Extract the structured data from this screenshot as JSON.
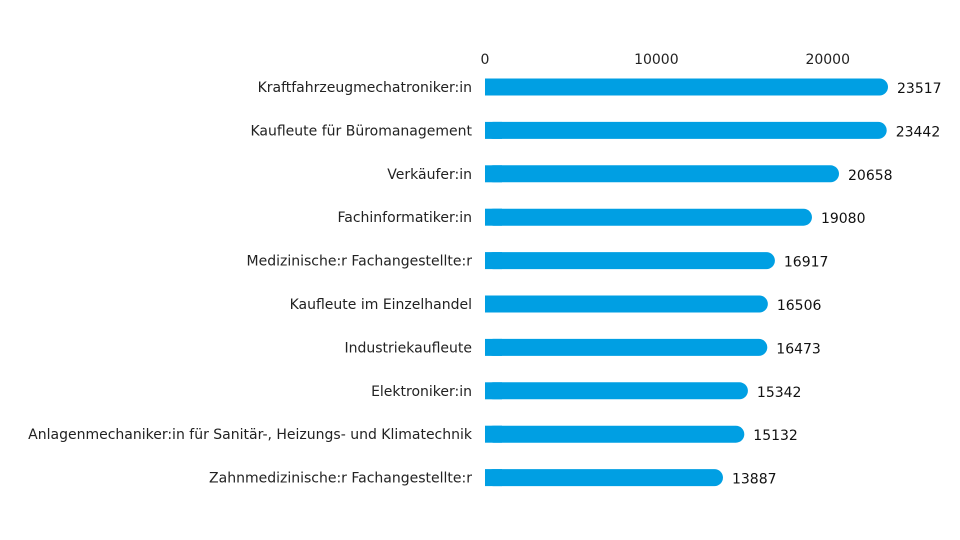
{
  "chart_data": {
    "type": "bar",
    "orientation": "horizontal",
    "categories": [
      "Kraftfahrzeugmechatroniker:in",
      "Kaufleute für Büromanagement",
      "Verkäufer:in",
      "Fachinformatiker:in",
      "Medizinische:r Fachangestellte:r",
      "Kaufleute im Einzelhandel",
      "Industriekaufleute",
      "Elektroniker:in",
      "Anlagenmechaniker:in für Sanitär-, Heizungs- und Klimatechnik",
      "Zahnmedizinische:r Fachangestellte:r"
    ],
    "values": [
      23517,
      23442,
      20658,
      19080,
      16917,
      16506,
      16473,
      15342,
      15132,
      13887
    ],
    "value_labels": [
      "23517",
      "23442",
      "20658",
      "19080",
      "16917",
      "16506",
      "16473",
      "15342",
      "15132",
      "13887"
    ],
    "x_ticks": [
      0,
      10000,
      20000
    ],
    "x_tick_labels": [
      "0",
      "10000",
      "20000"
    ],
    "xlim": [
      0,
      23517
    ],
    "axis_position": "top",
    "grid": false,
    "legend": "none",
    "bar_color": "#009fe3"
  }
}
